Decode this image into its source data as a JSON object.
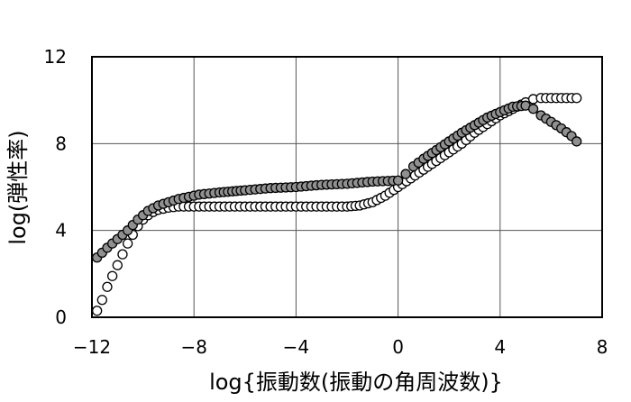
{
  "chart_data": {
    "type": "scatter",
    "xlabel": "log{振動数(振動の角周波数)}",
    "ylabel": "log(弾性率)",
    "xlim": [
      -12,
      8
    ],
    "ylim": [
      0,
      12
    ],
    "xticks": [
      -12,
      -8,
      -4,
      0,
      4,
      8
    ],
    "yticks": [
      0,
      4,
      8,
      12
    ],
    "xtick_labels": [
      "−12",
      "−8",
      "−4",
      "0",
      "4",
      "8"
    ],
    "ytick_labels": [
      "0",
      "4",
      "8",
      "12"
    ],
    "grid": true,
    "legend": "none",
    "series": [
      {
        "marker_fill": "#ffffff",
        "marker_edge": "#000000",
        "x": [
          -11.8,
          -11.6,
          -11.4,
          -11.2,
          -11.0,
          -10.8,
          -10.6,
          -10.4,
          -10.2,
          -10.0,
          -9.8,
          -9.6,
          -9.4,
          -9.2,
          -9.0,
          -8.6,
          -8.0,
          -7.0,
          -6.0,
          -5.0,
          -4.0,
          -3.0,
          -2.0,
          -1.5,
          -1.0,
          -0.5,
          0.0,
          0.5,
          1.0,
          1.5,
          2.0,
          2.5,
          3.0,
          3.5,
          4.0,
          4.5,
          5.0,
          5.3,
          5.6,
          6.0,
          6.4,
          6.8,
          7.0
        ],
        "y": [
          0.3,
          0.8,
          1.4,
          1.9,
          2.4,
          2.9,
          3.4,
          3.8,
          4.2,
          4.5,
          4.7,
          4.85,
          4.95,
          5.0,
          5.05,
          5.1,
          5.1,
          5.1,
          5.1,
          5.1,
          5.1,
          5.1,
          5.1,
          5.15,
          5.3,
          5.6,
          6.0,
          6.4,
          6.8,
          7.2,
          7.6,
          8.0,
          8.5,
          8.9,
          9.3,
          9.6,
          9.9,
          10.05,
          10.1,
          10.1,
          10.1,
          10.1,
          10.1
        ]
      },
      {
        "marker_fill": "#909090",
        "marker_edge": "#000000",
        "x": [
          -11.8,
          -11.4,
          -11.0,
          -10.6,
          -10.2,
          -9.8,
          -9.4,
          -9.0,
          -8.6,
          -8.2,
          -7.8,
          -7.4,
          -7.0,
          -6.5,
          -6.0,
          -5.0,
          -4.0,
          -3.0,
          -2.0,
          -1.0,
          0.0,
          0.3,
          0.6,
          1.0,
          1.5,
          2.0,
          2.5,
          3.0,
          3.5,
          4.0,
          4.5,
          5.0,
          5.3,
          5.6,
          6.0,
          6.4,
          6.8,
          7.0
        ],
        "y": [
          2.75,
          3.2,
          3.6,
          4.0,
          4.5,
          4.9,
          5.15,
          5.3,
          5.45,
          5.55,
          5.65,
          5.7,
          5.75,
          5.8,
          5.85,
          5.95,
          6.0,
          6.1,
          6.15,
          6.25,
          6.3,
          6.6,
          6.95,
          7.3,
          7.7,
          8.1,
          8.5,
          8.85,
          9.2,
          9.45,
          9.7,
          9.75,
          9.6,
          9.3,
          9.0,
          8.7,
          8.35,
          8.1
        ]
      }
    ]
  }
}
